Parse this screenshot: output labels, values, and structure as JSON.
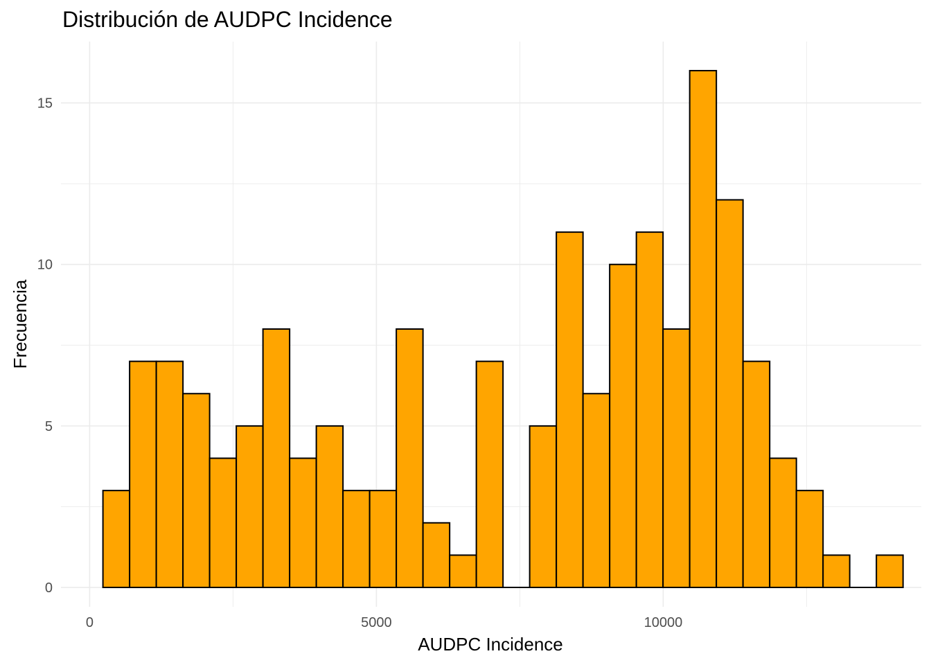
{
  "chart_data": {
    "type": "bar",
    "title": "Distribución de AUDPC Incidence",
    "xlabel": "AUDPC Incidence",
    "ylabel": "Frecuencia",
    "xlim": [
      -500,
      14500
    ],
    "ylim": [
      -0.6,
      16.9
    ],
    "xticks": [
      0,
      5000,
      10000
    ],
    "yticks": [
      0,
      5,
      10,
      15
    ],
    "grid": true,
    "bar_fill": "#FFA500",
    "bar_stroke": "#000000",
    "bins": [
      {
        "x0": 232,
        "x1": 697,
        "count": 3
      },
      {
        "x0": 697,
        "x1": 1162,
        "count": 7
      },
      {
        "x0": 1162,
        "x1": 1627,
        "count": 7
      },
      {
        "x0": 1627,
        "x1": 2092,
        "count": 6
      },
      {
        "x0": 2092,
        "x1": 2557,
        "count": 4
      },
      {
        "x0": 2557,
        "x1": 3022,
        "count": 5
      },
      {
        "x0": 3022,
        "x1": 3487,
        "count": 8
      },
      {
        "x0": 3487,
        "x1": 3952,
        "count": 4
      },
      {
        "x0": 3952,
        "x1": 4417,
        "count": 5
      },
      {
        "x0": 4417,
        "x1": 4882,
        "count": 3
      },
      {
        "x0": 4882,
        "x1": 5347,
        "count": 3
      },
      {
        "x0": 5347,
        "x1": 5812,
        "count": 8
      },
      {
        "x0": 5812,
        "x1": 6277,
        "count": 2
      },
      {
        "x0": 6277,
        "x1": 6742,
        "count": 1
      },
      {
        "x0": 6742,
        "x1": 7207,
        "count": 7
      },
      {
        "x0": 7207,
        "x1": 7672,
        "count": 0
      },
      {
        "x0": 7672,
        "x1": 8137,
        "count": 5
      },
      {
        "x0": 8137,
        "x1": 8602,
        "count": 11
      },
      {
        "x0": 8602,
        "x1": 9067,
        "count": 6
      },
      {
        "x0": 9067,
        "x1": 9532,
        "count": 10
      },
      {
        "x0": 9532,
        "x1": 9997,
        "count": 11
      },
      {
        "x0": 9997,
        "x1": 10462,
        "count": 8
      },
      {
        "x0": 10462,
        "x1": 10927,
        "count": 16
      },
      {
        "x0": 10927,
        "x1": 11392,
        "count": 12
      },
      {
        "x0": 11392,
        "x1": 11857,
        "count": 7
      },
      {
        "x0": 11857,
        "x1": 12322,
        "count": 4
      },
      {
        "x0": 12322,
        "x1": 12787,
        "count": 3
      },
      {
        "x0": 12787,
        "x1": 13252,
        "count": 1
      },
      {
        "x0": 13252,
        "x1": 13717,
        "count": 0
      },
      {
        "x0": 13717,
        "x1": 14182,
        "count": 1
      }
    ]
  }
}
